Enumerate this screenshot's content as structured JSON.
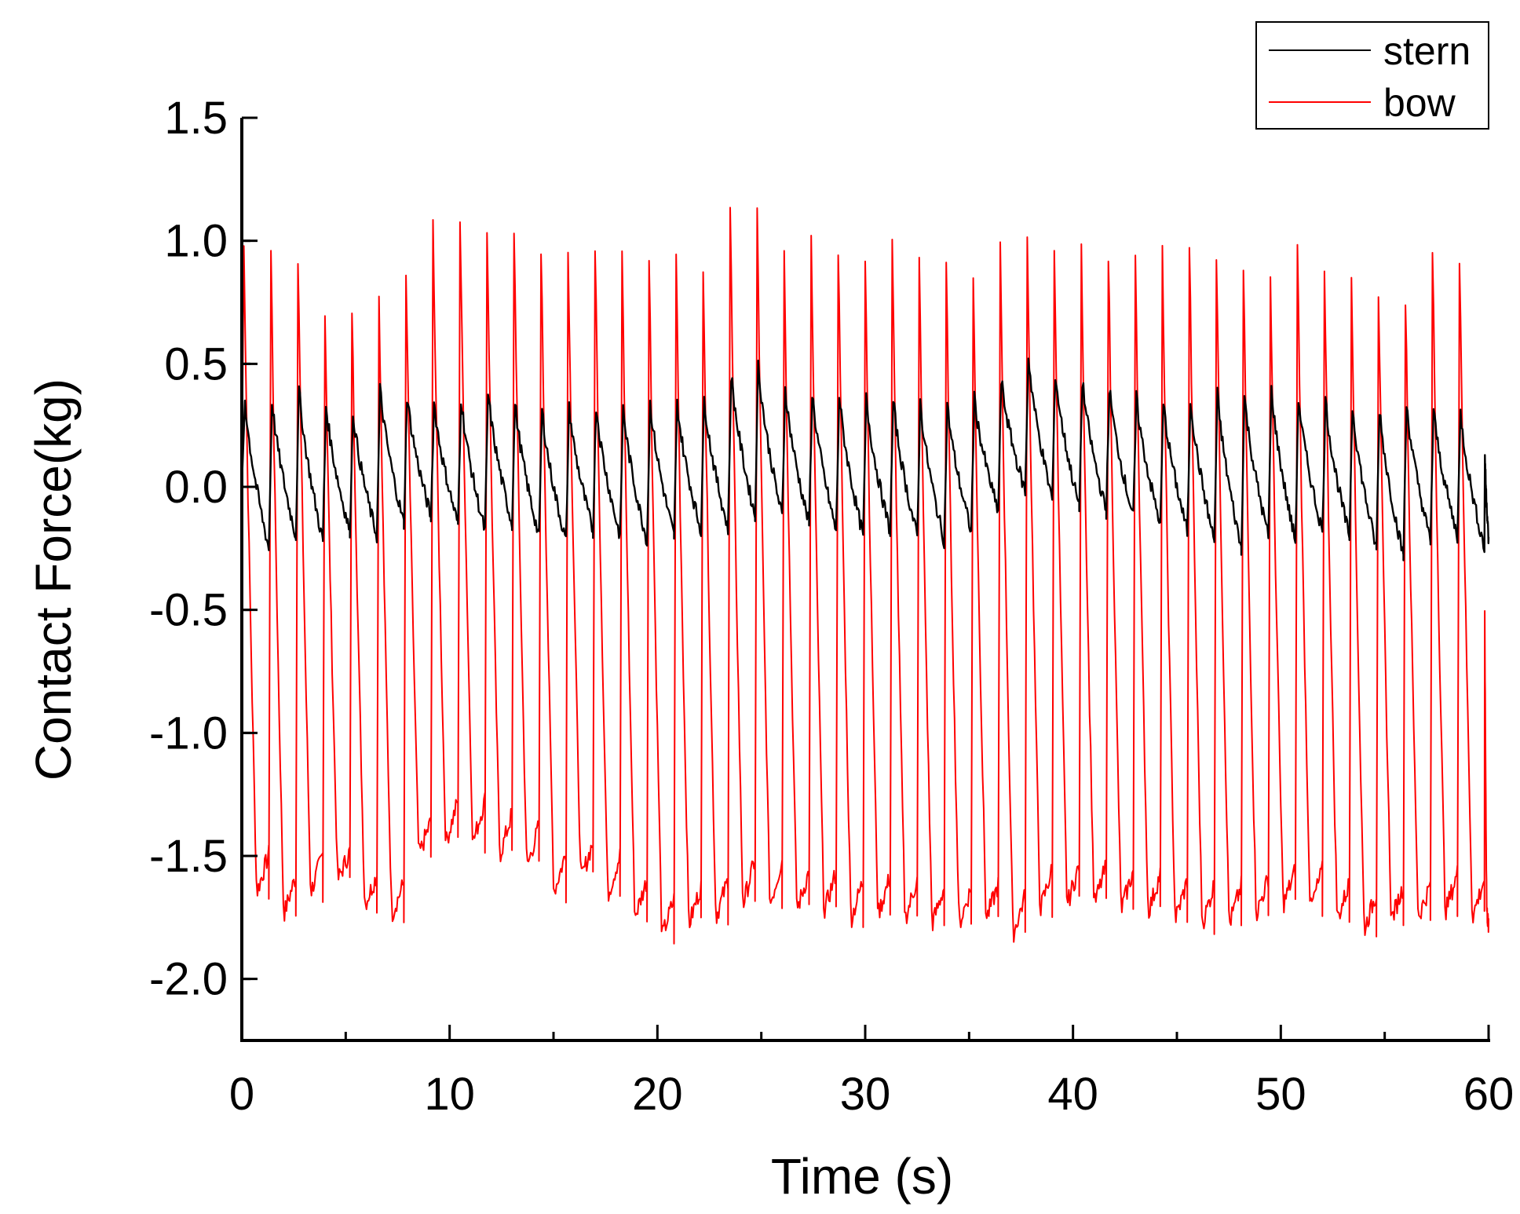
{
  "chart_data": {
    "type": "line",
    "title": "",
    "xlabel": "Time (s)",
    "ylabel": "Contact Force(kg)",
    "xlim": [
      0,
      60
    ],
    "ylim": [
      -2.25,
      1.5
    ],
    "x_ticks": [
      0,
      10,
      20,
      30,
      40,
      50,
      60
    ],
    "x_tick_labels": [
      "0",
      "10",
      "20",
      "30",
      "40",
      "50",
      "60"
    ],
    "y_ticks": [
      1.5,
      1.0,
      0.5,
      0.0,
      -0.5,
      -1.0,
      -1.5,
      -2.0
    ],
    "y_tick_labels": [
      "1.5",
      "1.0",
      "0.5",
      "0.0",
      "-0.5",
      "-1.0",
      "-1.5",
      "-2.0"
    ],
    "grid": false,
    "legend_position": "top-right",
    "series": [
      {
        "name": "stern",
        "color": "#000000",
        "cycles": {
          "t": [
            0.0,
            1.3,
            2.6,
            3.9,
            5.2,
            6.5,
            7.8,
            9.1,
            10.4,
            11.7,
            13.0,
            14.3,
            15.6,
            16.9,
            18.2,
            19.5,
            20.8,
            22.1,
            23.4,
            24.7,
            26.0,
            27.3,
            28.6,
            29.9,
            31.2,
            32.5,
            33.8,
            35.1,
            36.4,
            37.7,
            39.0,
            40.3,
            41.6,
            42.9,
            44.2,
            45.5,
            46.8,
            48.1,
            49.4,
            50.7,
            52.0,
            53.3,
            54.6,
            55.9,
            57.2,
            58.5,
            59.8
          ],
          "peak": [
            0.37,
            0.37,
            0.42,
            0.35,
            0.32,
            0.42,
            0.39,
            0.36,
            0.38,
            0.4,
            0.36,
            0.33,
            0.34,
            0.35,
            0.34,
            0.36,
            0.36,
            0.38,
            0.48,
            0.52,
            0.42,
            0.4,
            0.39,
            0.38,
            0.37,
            0.36,
            0.35,
            0.38,
            0.45,
            0.55,
            0.48,
            0.45,
            0.42,
            0.38,
            0.36,
            0.38,
            0.4,
            0.39,
            0.42,
            0.38,
            0.37,
            0.35,
            0.34,
            0.36,
            0.33,
            0.32,
            0.15
          ],
          "trough": [
            -0.25,
            -0.2,
            -0.22,
            -0.18,
            -0.2,
            -0.15,
            -0.12,
            -0.15,
            -0.18,
            -0.15,
            -0.2,
            -0.22,
            -0.18,
            -0.2,
            -0.22,
            -0.2,
            -0.18,
            -0.17,
            -0.12,
            -0.12,
            -0.15,
            -0.18,
            -0.2,
            -0.18,
            -0.2,
            -0.22,
            -0.18,
            -0.1,
            -0.02,
            -0.05,
            -0.08,
            -0.1,
            -0.12,
            -0.15,
            -0.18,
            -0.22,
            -0.25,
            -0.2,
            -0.22,
            -0.18,
            -0.2,
            -0.25,
            -0.28,
            -0.22,
            -0.2,
            -0.25,
            -0.22
          ]
        }
      },
      {
        "name": "bow",
        "color": "#ff0000",
        "cycles": {
          "t": [
            0.0,
            1.3,
            2.6,
            3.9,
            5.2,
            6.5,
            7.8,
            9.1,
            10.4,
            11.7,
            13.0,
            14.3,
            15.6,
            16.9,
            18.2,
            19.5,
            20.8,
            22.1,
            23.4,
            24.7,
            26.0,
            27.3,
            28.6,
            29.9,
            31.2,
            32.5,
            33.8,
            35.1,
            36.4,
            37.7,
            39.0,
            40.3,
            41.6,
            42.9,
            44.2,
            45.5,
            46.8,
            48.1,
            49.4,
            50.7,
            52.0,
            53.3,
            54.6,
            55.9,
            57.2,
            58.5,
            59.8
          ],
          "peak": [
            1.05,
            1.06,
            1.05,
            0.8,
            0.82,
            0.88,
            0.95,
            1.17,
            1.19,
            1.15,
            1.15,
            1.08,
            1.06,
            1.09,
            1.03,
            1.03,
            1.05,
            1.02,
            1.25,
            1.22,
            1.05,
            1.1,
            1.08,
            1.05,
            1.09,
            1.02,
            1.0,
            0.95,
            1.07,
            1.12,
            1.08,
            1.06,
            1.06,
            1.05,
            1.05,
            1.1,
            1.06,
            1.0,
            0.95,
            1.08,
            1.0,
            0.98,
            0.9,
            0.88,
            1.07,
            1.05,
            -0.48
          ],
          "trough": [
            -1.65,
            -1.74,
            -1.65,
            -1.6,
            -1.7,
            -1.74,
            -1.5,
            -1.45,
            -1.45,
            -1.5,
            -1.55,
            -1.65,
            -1.6,
            -1.66,
            -1.75,
            -1.83,
            -1.78,
            -1.75,
            -1.7,
            -1.7,
            -1.72,
            -1.73,
            -1.76,
            -1.74,
            -1.76,
            -1.78,
            -1.78,
            -1.76,
            -1.82,
            -1.72,
            -1.7,
            -1.7,
            -1.72,
            -1.73,
            -1.76,
            -1.78,
            -1.78,
            -1.74,
            -1.7,
            -1.72,
            -1.76,
            -1.8,
            -1.76,
            -1.75,
            -1.73,
            -1.75,
            -1.72
          ]
        }
      }
    ]
  }
}
